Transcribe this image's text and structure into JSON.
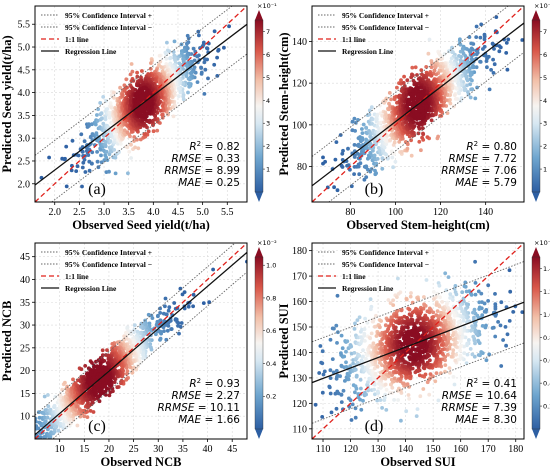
{
  "chart_data": [
    {
      "type": "scatter",
      "panel_label": "(a)",
      "xlabel": "Observed Seed yield(t/ha)",
      "ylabel": "Predicted Seed yield(t/ha)",
      "xlim": [
        1.6,
        5.9
      ],
      "ylim": [
        1.6,
        5.9
      ],
      "xticks": [
        "2.0",
        "2.5",
        "3.0",
        "3.5",
        "4.0",
        "4.5",
        "5.0",
        "5.5"
      ],
      "yticks": [
        "2.0",
        "2.5",
        "3.0",
        "3.5",
        "4.0",
        "4.5",
        "5.0",
        "5.5"
      ],
      "legend": {
        "ci_plus": "95% Confidence Interval +",
        "ci_minus": "95% Confidence Interval −",
        "one_to_one": "1:1 line",
        "regression": "Regression Line",
        "position": "top-left"
      },
      "stats": {
        "r2": "0.82",
        "rmse": "0.33",
        "rrmse": "8.99",
        "mae": "0.25"
      },
      "regression": {
        "slope": 0.82,
        "intercept": 0.66
      },
      "ci_offset": 0.65,
      "density_center": [
        3.8,
        3.8
      ],
      "spread": 0.55,
      "noise": 0.32,
      "colorbar": {
        "exponent": "×10⁻¹",
        "ticks": [
          "1",
          "2",
          "3",
          "4",
          "5",
          "6",
          "7"
        ],
        "max": 7.5
      },
      "grid": true
    },
    {
      "type": "scatter",
      "panel_label": "(b)",
      "xlabel": "Observed Stem-height(cm)",
      "ylabel": "Predicted Stem-height(cm)",
      "xlim": [
        63,
        157
      ],
      "ylim": [
        63,
        157
      ],
      "xticks": [
        "80",
        "100",
        "120",
        "140"
      ],
      "yticks": [
        "80",
        "100",
        "120",
        "140"
      ],
      "legend": {
        "ci_plus": "95% Confidence Interval +",
        "ci_minus": "95% Confidence Interval −",
        "one_to_one": "1:1 line",
        "regression": "Regression Line",
        "position": "top-left"
      },
      "stats": {
        "r2": "0.80",
        "rmse": "7.72",
        "rrmse": "7.06",
        "mae": "5.79"
      },
      "regression": {
        "slope": 0.83,
        "intercept": 18.5
      },
      "ci_offset": 14,
      "density_center": [
        110,
        110
      ],
      "spread": 14,
      "noise": 7.5,
      "colorbar": {
        "exponent": "×10⁻³",
        "ticks": [
          "1",
          "2",
          "3",
          "4",
          "5",
          "6",
          "7"
        ],
        "max": 7.5
      },
      "grid": true
    },
    {
      "type": "scatter",
      "panel_label": "(c)",
      "xlabel": "Observed NCB",
      "ylabel": "Predicted NCB",
      "xlim": [
        5,
        48
      ],
      "ylim": [
        5,
        48
      ],
      "xticks": [
        "10",
        "15",
        "20",
        "25",
        "30",
        "35",
        "40",
        "45"
      ],
      "yticks": [
        "10",
        "15",
        "20",
        "25",
        "30",
        "35",
        "40",
        "45"
      ],
      "legend": {
        "ci_plus": "95% Confidence Interval +",
        "ci_minus": "95% Confidence Interval −",
        "one_to_one": "1:1 line",
        "regression": "Regression Line",
        "position": "top-left"
      },
      "stats": {
        "r2": "0.93",
        "rmse": "2.27",
        "rrmse": "10.11",
        "mae": "1.66"
      },
      "regression": {
        "slope": 0.93,
        "intercept": 1.3
      },
      "ci_offset": 4.3,
      "density_center": [
        18,
        18
      ],
      "spread": 7,
      "noise": 2.2,
      "colorbar": {
        "exponent": "×10⁻²",
        "ticks": [
          "0.2",
          "0.4",
          "0.6",
          "0.8",
          "1.0"
        ],
        "max": 1.05
      },
      "grid": true
    },
    {
      "type": "scatter",
      "panel_label": "(d)",
      "xlabel": "Observed SUI",
      "ylabel": "Predicted SUI",
      "xlim": [
        106,
        183
      ],
      "ylim": [
        106,
        183
      ],
      "xticks": [
        "110",
        "120",
        "130",
        "140",
        "150",
        "160",
        "170",
        "180"
      ],
      "yticks": [
        "110",
        "120",
        "130",
        "140",
        "150",
        "160",
        "170",
        "180"
      ],
      "legend": {
        "ci_plus": "95% Confidence Interval +",
        "ci_minus": "95% Confidence Interval −",
        "one_to_one": "1:1 line",
        "regression": "Regression Line",
        "position": "top-left"
      },
      "stats": {
        "r2": "0.41",
        "rmse": "10.64",
        "rrmse": "7.39",
        "mae": "8.30"
      },
      "regression": {
        "slope": 0.41,
        "intercept": 84.7
      },
      "ci_offset": 16,
      "density_center": [
        143,
        143
      ],
      "spread": 14,
      "noise": 8.5,
      "colorbar": {
        "exponent": "×10⁻³",
        "ticks": [
          "0.2",
          "0.4",
          "0.6",
          "0.8",
          "1.0",
          "1.2",
          "1.4"
        ],
        "max": 1.5
      },
      "grid": true
    }
  ]
}
